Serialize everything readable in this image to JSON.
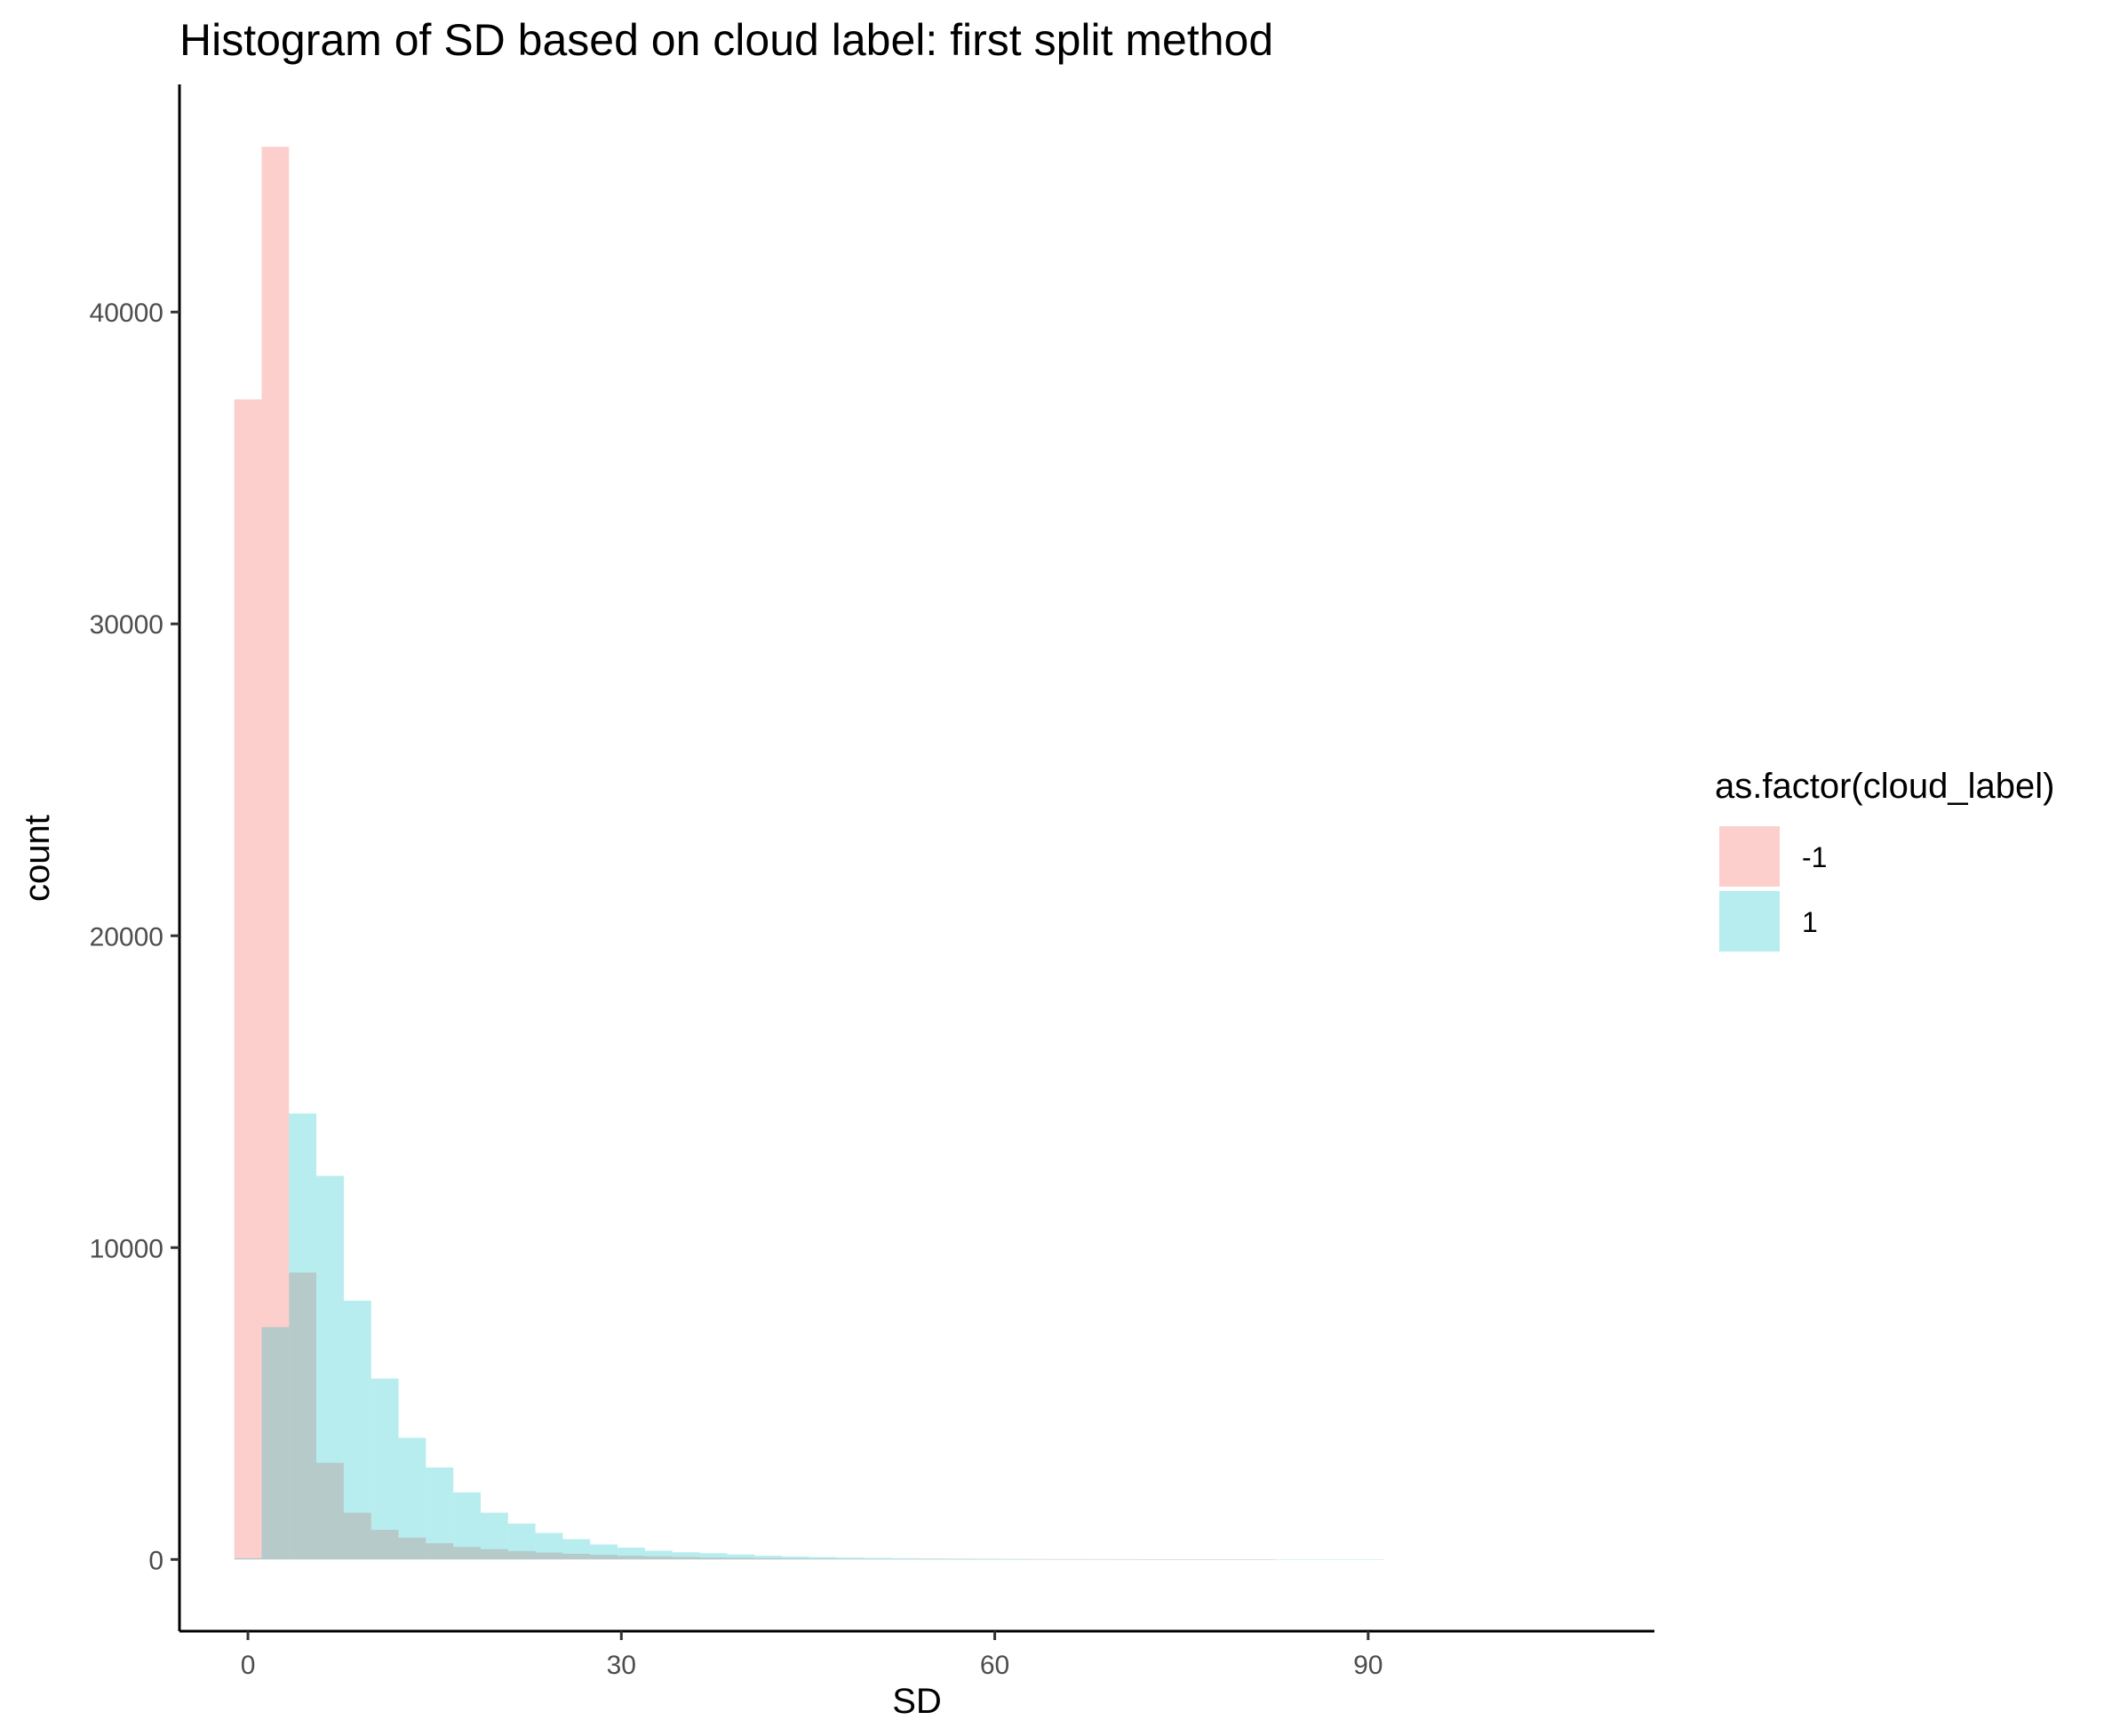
{
  "chart_data": {
    "type": "histogram",
    "title": "Histogram of SD based on cloud label: first split method",
    "xlabel": "SD",
    "ylabel": "count",
    "xlim": [
      -5.5,
      113
    ],
    "ylim": [
      -2300,
      47300
    ],
    "x_ticks": [
      0,
      30,
      60,
      90
    ],
    "x_tick_labels": [
      "0",
      "30",
      "60",
      "90"
    ],
    "y_ticks": [
      0,
      10000,
      20000,
      30000,
      40000
    ],
    "y_tick_labels": [
      "0",
      "10000",
      "20000",
      "30000",
      "40000"
    ],
    "bin_starts": [
      -1.1,
      1.1,
      3.3,
      5.5,
      7.7,
      9.9,
      12.1,
      14.3,
      16.5,
      18.7,
      20.9,
      23.1,
      25.3,
      27.5,
      29.7,
      31.9,
      34.1,
      36.3,
      38.5,
      40.7,
      42.9,
      45.1,
      47.3,
      49.5,
      51.7,
      53.9,
      56.1,
      58.3,
      60.5,
      62.7,
      64.9,
      67.1,
      69.3,
      71.5,
      73.7,
      75.9,
      78.1,
      80.3,
      82.5,
      84.7,
      86.9,
      89.1
    ],
    "bin_width": 2.2,
    "series": [
      {
        "name": "-1",
        "color": "#F8766D",
        "opacity": 0.35,
        "values": [
          37200,
          45300,
          9200,
          3100,
          1500,
          950,
          700,
          520,
          400,
          330,
          270,
          220,
          180,
          150,
          120,
          100,
          80,
          60,
          50,
          40,
          30,
          25,
          20,
          15,
          12,
          10,
          8,
          6,
          5,
          4,
          3,
          3,
          2,
          2,
          1,
          1,
          1,
          1,
          0,
          0,
          0,
          0
        ]
      },
      {
        "name": "1",
        "color": "#00BFC4",
        "opacity": 0.28,
        "values": [
          40,
          7450,
          14300,
          12300,
          8300,
          5800,
          3900,
          2950,
          2150,
          1500,
          1150,
          850,
          650,
          480,
          380,
          280,
          230,
          200,
          160,
          120,
          95,
          75,
          60,
          50,
          40,
          35,
          30,
          25,
          20,
          18,
          15,
          13,
          11,
          9,
          7,
          6,
          5,
          4,
          3,
          2,
          1,
          1
        ]
      }
    ],
    "legend": {
      "title": "as.factor(cloud_label)",
      "entries": [
        "-1",
        "1"
      ],
      "position": "right"
    }
  }
}
